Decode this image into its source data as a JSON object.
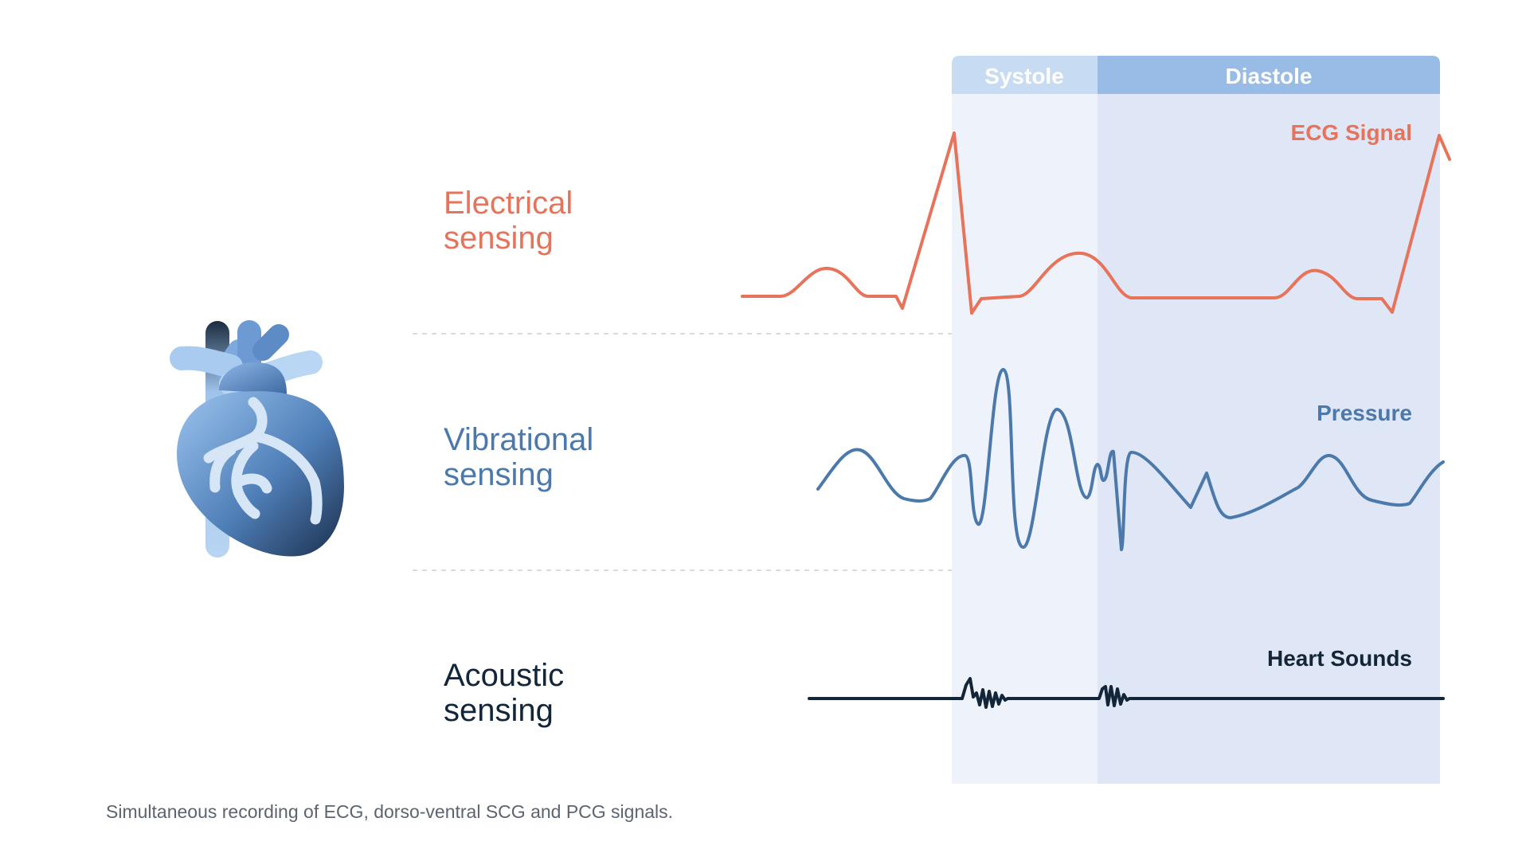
{
  "phases": {
    "systole": "Systole",
    "diastole": "Diastole"
  },
  "rows": [
    {
      "label": "Electrical\nsensing",
      "signal": "ECG Signal",
      "color": "#e8735b"
    },
    {
      "label": "Vibrational\nsensing",
      "signal": "Pressure",
      "color": "#4b79ab"
    },
    {
      "label": "Acoustic\nsensing",
      "signal": "Heart Sounds",
      "color": "#132639"
    }
  ],
  "caption": "Simultaneous recording of ECG, dorso-ventral SCG and PCG signals.",
  "icon": "heart-anatomy-icon",
  "colors": {
    "systole_bg": "#eef3fb",
    "diastole_bg": "#dfe6f5",
    "systole_header": "#c7dbf2",
    "diastole_header": "#98bce5"
  }
}
